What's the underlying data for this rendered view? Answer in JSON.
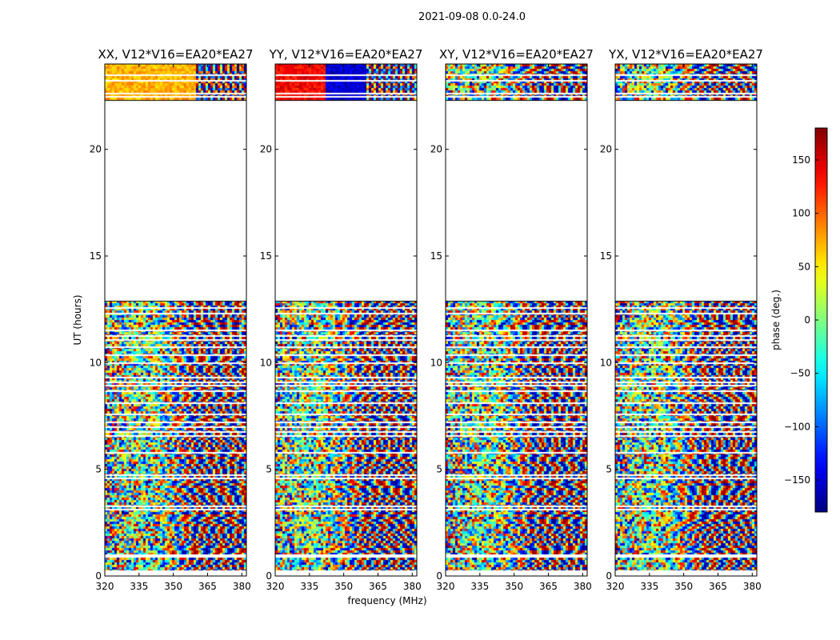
{
  "chart_data": {
    "type": "heatmap",
    "suptitle": "2021-09-08 0.0-24.0",
    "panels": [
      {
        "title": "XX, V12*V16=EA20*EA27",
        "tone": "xx"
      },
      {
        "title": "YY, V12*V16=EA20*EA27",
        "tone": "yy"
      },
      {
        "title": "XY, V12*V16=EA20*EA27",
        "tone": "cross"
      },
      {
        "title": "YX, V12*V16=EA20*EA27",
        "tone": "cross"
      }
    ],
    "xlabel": "frequency (MHz)",
    "ylabel": "UT (hours)",
    "xlim": [
      320,
      382
    ],
    "ylim": [
      0,
      24
    ],
    "xticks": [
      "320",
      "335",
      "350",
      "365",
      "380"
    ],
    "xtick_values": [
      320,
      335,
      350,
      365,
      380
    ],
    "yticks": [
      "0",
      "5",
      "10",
      "15",
      "20"
    ],
    "ytick_values": [
      0,
      5,
      10,
      15,
      20
    ],
    "data_blocks_hours": [
      [
        0.2,
        12.9
      ],
      [
        22.3,
        24.0
      ]
    ],
    "gap_lines_hours": [
      0.25,
      0.95,
      1.0,
      3.15,
      3.3,
      4.6,
      4.75,
      5.8,
      6.6,
      6.8,
      7.0,
      7.25,
      7.6,
      8.15,
      8.7,
      8.95,
      9.1,
      9.35,
      10.0,
      10.4,
      10.75,
      11.1,
      11.3,
      11.55,
      12.35,
      12.6,
      22.5,
      22.65,
      23.25,
      23.5
    ],
    "colorbar": {
      "label": "phase (deg.)",
      "range": [
        -180,
        180
      ],
      "ticks": [
        "150",
        "100",
        "50",
        "0",
        "−50",
        "−100",
        "−150"
      ],
      "tick_values": [
        150,
        100,
        50,
        0,
        -50,
        -100,
        -150
      ],
      "colormap": "jet"
    }
  }
}
